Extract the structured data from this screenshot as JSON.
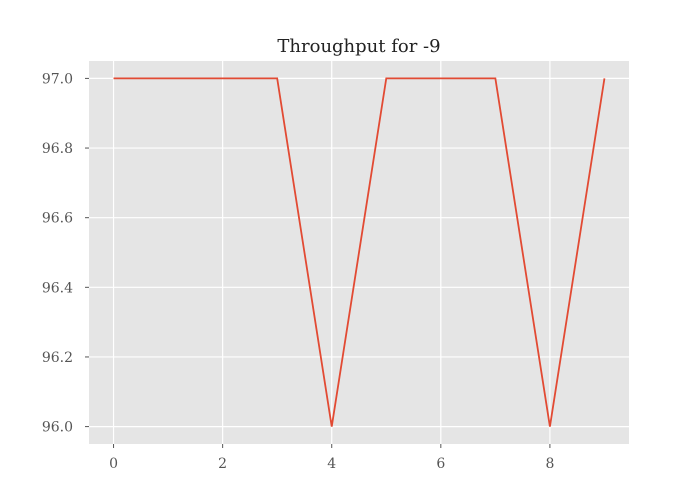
{
  "chart_data": {
    "type": "line",
    "title": "Throughput for -9",
    "xlabel": "",
    "ylabel": "",
    "x": [
      0,
      1,
      2,
      3,
      4,
      5,
      6,
      7,
      8,
      9
    ],
    "series": [
      {
        "values": [
          97.0,
          97.0,
          97.0,
          97.0,
          96.0,
          97.0,
          97.0,
          97.0,
          96.0,
          97.0
        ]
      }
    ],
    "xlim": [
      -0.45,
      9.45
    ],
    "ylim": [
      95.95,
      97.05
    ],
    "xticks": [
      0,
      2,
      4,
      6,
      8
    ],
    "xtick_labels": [
      "0",
      "2",
      "4",
      "6",
      "8"
    ],
    "yticks": [
      96.0,
      96.2,
      96.4,
      96.6,
      96.8,
      97.0
    ],
    "ytick_labels": [
      "96.0",
      "96.2",
      "96.4",
      "96.6",
      "96.8",
      "97.0"
    ],
    "grid": true,
    "style": "ggplot",
    "colors": {
      "plot_background": "#e5e5e5",
      "grid": "#ffffff",
      "line": "#e24a33",
      "tick_mark": "#555555"
    }
  }
}
